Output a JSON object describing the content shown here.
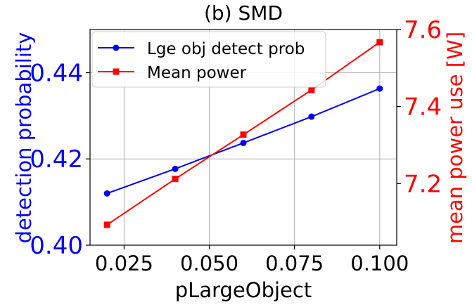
{
  "chart_data": {
    "type": "line",
    "title": "(b) SMD",
    "xlabel": "pLargeObject",
    "ylabel": "detection probability",
    "y2label": "mean power use [W]",
    "xlim": [
      0.015,
      0.105
    ],
    "ylim": [
      0.4,
      0.45
    ],
    "y2lim": [
      7.04,
      7.6
    ],
    "x": [
      0.02,
      0.04,
      0.06,
      0.08,
      0.1
    ],
    "xticks": [
      "0.025",
      "0.050",
      "0.075",
      "0.100"
    ],
    "xtick_values": [
      0.025,
      0.05,
      0.075,
      0.1
    ],
    "yticks": [
      "0.40",
      "0.42",
      "0.44"
    ],
    "ytick_values": [
      0.4,
      0.42,
      0.44
    ],
    "y2ticks": [
      "7.2",
      "7.4",
      "7.6"
    ],
    "y2tick_values": [
      7.2,
      7.4,
      7.6
    ],
    "grid": true,
    "legend": "top-left",
    "series": [
      {
        "name": "Lge obj detect prob",
        "axis": "left",
        "color": "#0000ee",
        "marker": "circle",
        "values": [
          0.412,
          0.4177,
          0.4237,
          0.4298,
          0.4363
        ]
      },
      {
        "name": "Mean power",
        "axis": "right",
        "color": "#ff0000",
        "marker": "square",
        "values": [
          7.093,
          7.212,
          7.327,
          7.443,
          7.567
        ]
      }
    ]
  }
}
